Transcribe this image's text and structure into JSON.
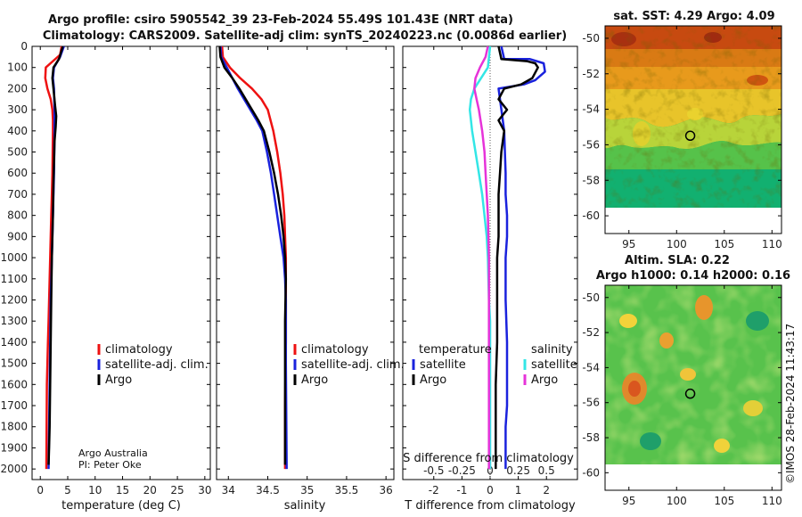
{
  "header": {
    "line1": "Argo profile: csiro 5905542_39 23-Feb-2024 55.49S 101.43E (NRT data)",
    "line2": "Climatology: CARS2009. Satellite-adj clim: synTS_20240223.nc (0.0086d earlier)"
  },
  "credit": {
    "org": "Argo Australia",
    "pi": "PI: Peter Oke"
  },
  "watermark": "©IMOS 28-Feb-2024 11:43:17",
  "colors": {
    "climatology": "#ee1111",
    "satellite": "#1a22dd",
    "argo": "#000000",
    "sat_salinity": "#33e6e6",
    "argo_salinity": "#e633d9"
  },
  "chart_data": [
    {
      "id": "temperature",
      "type": "line",
      "xlabel": "temperature (deg C)",
      "ylabel": "",
      "xlim": [
        -1.5,
        31
      ],
      "ylim": [
        0,
        2050
      ],
      "y_inverted": true,
      "xticks": [
        0,
        5,
        10,
        15,
        20,
        25,
        30
      ],
      "yticks": [
        0,
        100,
        200,
        300,
        400,
        500,
        600,
        700,
        800,
        900,
        1000,
        1100,
        1200,
        1300,
        1400,
        1500,
        1600,
        1700,
        1800,
        1900,
        2000
      ],
      "legend": {
        "placement": "lower-right",
        "entries": [
          "climatology",
          "satellite-adj. clim.",
          "Argo"
        ]
      },
      "series": [
        {
          "name": "climatology",
          "color": "#ee1111",
          "x": [
            3.9,
            3.6,
            1.0,
            0.9,
            1.3,
            1.9,
            2.2,
            2.3,
            2.3,
            2.25,
            2.2,
            2.1,
            2.0,
            1.9,
            1.8,
            1.7,
            1.6,
            1.5,
            1.4,
            1.3,
            1.2,
            1.1
          ],
          "y": [
            0,
            40,
            100,
            150,
            200,
            250,
            300,
            350,
            400,
            500,
            600,
            700,
            800,
            900,
            1000,
            1100,
            1200,
            1300,
            1400,
            1500,
            1600,
            2000
          ]
        },
        {
          "name": "satellite-adj. clim.",
          "color": "#1a22dd",
          "x": [
            4.3,
            3.6,
            2.5,
            2.3,
            2.5,
            2.6,
            2.6,
            2.55,
            2.5,
            2.4,
            2.3,
            2.2,
            2.1,
            2.0,
            1.9,
            1.8,
            1.7,
            1.6,
            1.5
          ],
          "y": [
            0,
            50,
            100,
            150,
            200,
            300,
            400,
            500,
            600,
            700,
            800,
            900,
            1000,
            1100,
            1200,
            1400,
            1600,
            1800,
            2000
          ]
        },
        {
          "name": "Argo",
          "color": "#000000",
          "x": [
            4.1,
            3.4,
            2.4,
            2.2,
            2.4,
            2.7,
            2.9,
            2.8,
            2.6,
            2.5,
            2.4,
            2.3,
            2.2,
            2.1,
            2.0,
            1.9,
            1.8,
            1.7,
            1.6,
            1.5
          ],
          "y": [
            0,
            60,
            100,
            150,
            200,
            280,
            330,
            380,
            450,
            550,
            650,
            800,
            900,
            1000,
            1200,
            1400,
            1600,
            1800,
            1900,
            1980
          ]
        }
      ]
    },
    {
      "id": "salinity",
      "type": "line",
      "xlabel": "salinity",
      "xlim": [
        33.85,
        36.1
      ],
      "ylim": [
        0,
        2050
      ],
      "y_inverted": true,
      "xticks": [
        34,
        34.5,
        35,
        35.5,
        36
      ],
      "legend": {
        "placement": "lower-right",
        "entries": [
          "climatology",
          "satellite-adj. clim.",
          "Argo"
        ]
      },
      "series": [
        {
          "name": "climatology",
          "color": "#ee1111",
          "x": [
            33.92,
            33.93,
            34.02,
            34.15,
            34.3,
            34.42,
            34.5,
            34.57,
            34.62,
            34.66,
            34.69,
            34.71,
            34.72,
            34.73,
            34.73,
            34.73,
            34.72,
            34.72
          ],
          "y": [
            0,
            50,
            100,
            150,
            200,
            250,
            300,
            400,
            500,
            600,
            700,
            800,
            900,
            1000,
            1200,
            1400,
            1700,
            2000
          ]
        },
        {
          "name": "satellite-adj. clim.",
          "color": "#1a22dd",
          "x": [
            33.9,
            33.91,
            33.98,
            34.05,
            34.12,
            34.2,
            34.28,
            34.36,
            34.43,
            34.49,
            34.54,
            34.58,
            34.62,
            34.66,
            34.7,
            34.72,
            34.73,
            34.73,
            34.74
          ],
          "y": [
            0,
            50,
            100,
            150,
            200,
            250,
            300,
            350,
            400,
            500,
            600,
            700,
            800,
            900,
            1000,
            1100,
            1200,
            1500,
            2000
          ]
        },
        {
          "name": "Argo",
          "color": "#000000",
          "x": [
            33.89,
            33.9,
            33.95,
            34.05,
            34.14,
            34.22,
            34.3,
            34.38,
            34.45,
            34.52,
            34.58,
            34.63,
            34.67,
            34.7,
            34.72,
            34.73,
            34.72,
            34.72,
            34.72
          ],
          "y": [
            0,
            50,
            100,
            150,
            200,
            250,
            300,
            350,
            400,
            500,
            600,
            700,
            800,
            900,
            1000,
            1100,
            1300,
            1600,
            1980
          ]
        }
      ]
    },
    {
      "id": "difference",
      "type": "line",
      "xlabel": "T difference from climatology",
      "x2label": "S difference from climatology",
      "xlim": [
        -3.1,
        3.1
      ],
      "x2lim": [
        -0.775,
        0.775
      ],
      "ylim": [
        0,
        2050
      ],
      "y_inverted": true,
      "xticks": [
        -2,
        -1,
        0,
        1,
        2
      ],
      "x2ticks": [
        -0.5,
        -0.25,
        0,
        0.25,
        0.5
      ],
      "x2ticklabels": [
        "-0.5",
        "-0.25",
        "0",
        "0.25",
        "0.5"
      ],
      "legend_temperature": {
        "title": "temperature",
        "entries": [
          "satellite",
          "Argo"
        ]
      },
      "legend_salinity": {
        "title": "salinity",
        "entries": [
          "satellite",
          "Argo"
        ]
      },
      "series": [
        {
          "name": "temperature satellite",
          "color": "#1a22dd",
          "axis": "T",
          "x": [
            0.4,
            0.5,
            1.4,
            1.9,
            1.95,
            1.6,
            1.2,
            0.3,
            0.35,
            0.5,
            0.55,
            0.55,
            0.6,
            0.6,
            0.55,
            0.55,
            0.6,
            0.6,
            0.6,
            0.55,
            0.55,
            0.55
          ],
          "y": [
            0,
            60,
            60,
            80,
            120,
            160,
            180,
            200,
            250,
            400,
            600,
            700,
            800,
            900,
            1000,
            1200,
            1400,
            1500,
            1700,
            1800,
            1900,
            2000
          ]
        },
        {
          "name": "temperature Argo",
          "color": "#000000",
          "axis": "T",
          "x": [
            0.3,
            0.4,
            1.3,
            1.6,
            1.7,
            1.5,
            1.1,
            0.5,
            0.3,
            0.6,
            0.3,
            0.5,
            0.4,
            0.35,
            0.3,
            0.3,
            0.3,
            0.25,
            0.25,
            0.25,
            0.2,
            0.2,
            0.2
          ],
          "y": [
            0,
            60,
            70,
            80,
            100,
            150,
            180,
            200,
            250,
            300,
            350,
            400,
            500,
            600,
            700,
            800,
            900,
            1000,
            1200,
            1400,
            1600,
            1800,
            2000
          ]
        },
        {
          "name": "salinity satellite",
          "color": "#33e6e6",
          "axis": "S",
          "x": [
            0.0,
            -0.02,
            -0.08,
            -0.14,
            -0.17,
            -0.18,
            -0.16,
            -0.13,
            -0.1,
            -0.07,
            -0.05,
            -0.03,
            -0.02,
            -0.01,
            0.0,
            0.0,
            0.0,
            0.0
          ],
          "y": [
            0,
            100,
            150,
            200,
            250,
            300,
            400,
            500,
            600,
            700,
            800,
            900,
            1000,
            1200,
            1300,
            1400,
            1700,
            2000
          ]
        },
        {
          "name": "salinity Argo",
          "color": "#e633d9",
          "axis": "S",
          "x": [
            -0.02,
            -0.04,
            -0.09,
            -0.13,
            -0.14,
            -0.12,
            -0.1,
            -0.07,
            -0.05,
            -0.04,
            -0.03,
            -0.02,
            -0.01,
            -0.01,
            -0.01,
            -0.01
          ],
          "y": [
            0,
            50,
            100,
            150,
            200,
            250,
            300,
            400,
            500,
            600,
            700,
            800,
            1000,
            1200,
            1600,
            2000
          ]
        }
      ]
    },
    {
      "id": "sst_map",
      "type": "heatmap",
      "title": "sat. SST: 4.29 Argo: 4.09",
      "xlim": [
        92.5,
        111
      ],
      "ylim": [
        -61,
        -49.3
      ],
      "xticks": [
        95,
        100,
        105,
        110
      ],
      "yticks": [
        -50,
        -52,
        -54,
        -56,
        -58,
        -60
      ],
      "profile_location": {
        "lon": 101.43,
        "lat": -55.49
      }
    },
    {
      "id": "sla_map",
      "type": "heatmap",
      "title": "Altim. SLA: 0.22",
      "subtitle": "Argo h1000: 0.14 h2000: 0.16",
      "xlim": [
        92.5,
        111
      ],
      "ylim": [
        -61,
        -49.3
      ],
      "xticks": [
        95,
        100,
        105,
        110
      ],
      "yticks": [
        -50,
        -52,
        -54,
        -56,
        -58,
        -60
      ],
      "profile_location": {
        "lon": 101.43,
        "lat": -55.49
      }
    }
  ]
}
